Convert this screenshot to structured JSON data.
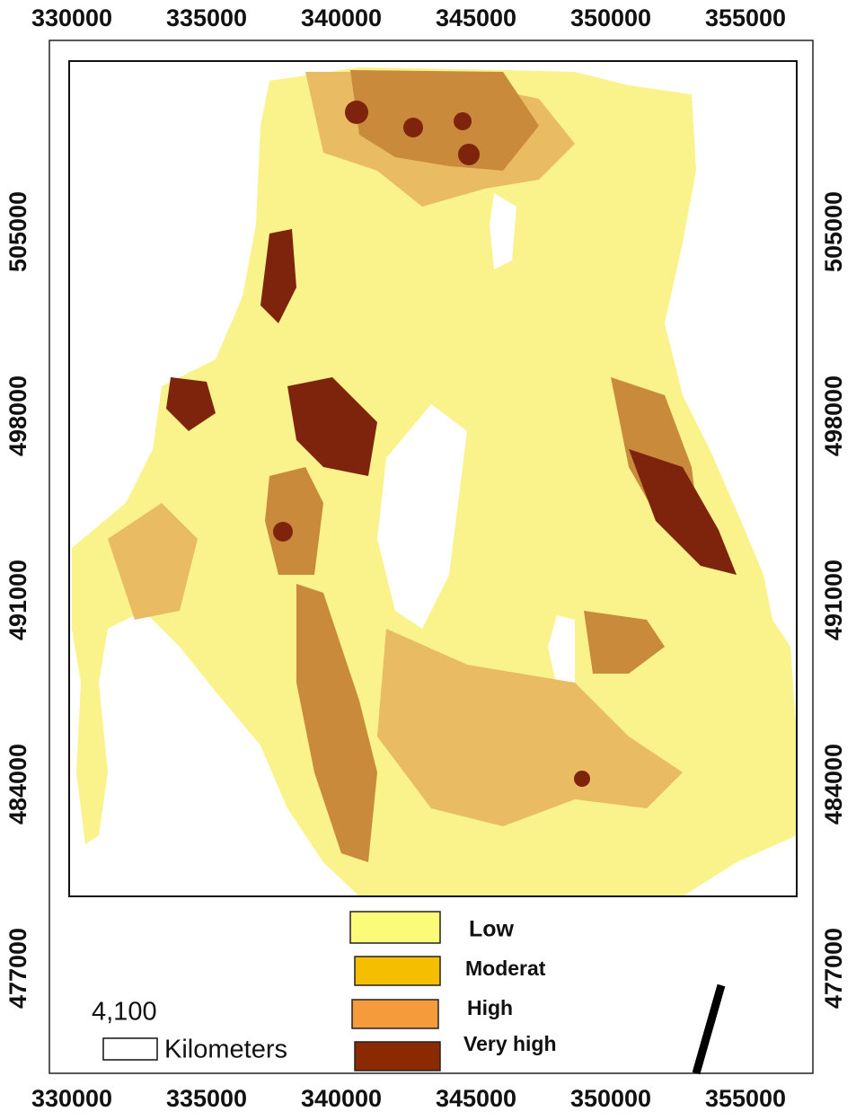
{
  "map": {
    "x_ticks": [
      330000,
      335000,
      340000,
      345000,
      350000,
      355000
    ],
    "y_ticks": [
      505000,
      498000,
      491000,
      484000,
      477000
    ],
    "legend": [
      "Low",
      "Moderat",
      "High",
      "Very high"
    ],
    "scale_value": "4,100",
    "scale_unit": "Kilometers"
  }
}
